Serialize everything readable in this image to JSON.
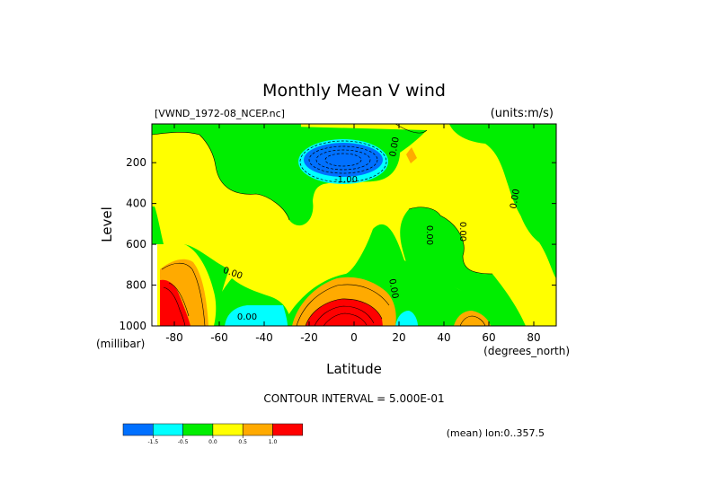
{
  "chart_data": {
    "type": "heatmap",
    "title": "Monthly Mean V wind",
    "dataset_label": "[VWND_1972-08_NCEP.nc]",
    "units_label": "(units:m/s)",
    "xlabel": "Latitude",
    "x_units": "(degrees_north)",
    "ylabel": "Level",
    "y_units": "(millibar)",
    "xlim": [
      -90,
      90
    ],
    "ylim": [
      1000,
      10
    ],
    "x_ticks": [
      -80,
      -60,
      -40,
      -20,
      0,
      20,
      40,
      60,
      80
    ],
    "x_tick_labels": [
      "-80",
      "-60",
      "-40",
      "-20",
      "0",
      "20",
      "40",
      "60",
      "80"
    ],
    "y_ticks": [
      200,
      400,
      600,
      800,
      1000
    ],
    "y_tick_labels": [
      "200",
      "400",
      "600",
      "800",
      "1000"
    ],
    "contour_interval_text": "CONTOUR INTERVAL = 5.000E-01",
    "average_note": "(mean) lon:0..357.5",
    "contour_labels": [
      "-1.00",
      "0.00",
      "0.00",
      "0.00",
      "0.00",
      "0.00",
      "0.00",
      "0.00"
    ],
    "legend": {
      "labels": [
        "-1.5",
        "-0.5",
        "0.0",
        "0.5",
        "1.0"
      ],
      "colors": [
        "#0070ff",
        "#00ffff",
        "#00ee00",
        "#ffff00",
        "#ffaa00",
        "#ff0000"
      ],
      "bins": [
        "< -1.5",
        "-1.5 to -0.5",
        "-0.5 to 0.0",
        "0.0 to 0.5",
        "0.5 to 1.0",
        "> 1.0"
      ]
    },
    "fill_colors": {
      "strong_negative": "#0070ff",
      "negative": "#00ffff",
      "slight_negative": "#00ee00",
      "slight_positive": "#ffff00",
      "positive": "#ffaa00",
      "strong_positive": "#ff0000"
    }
  }
}
